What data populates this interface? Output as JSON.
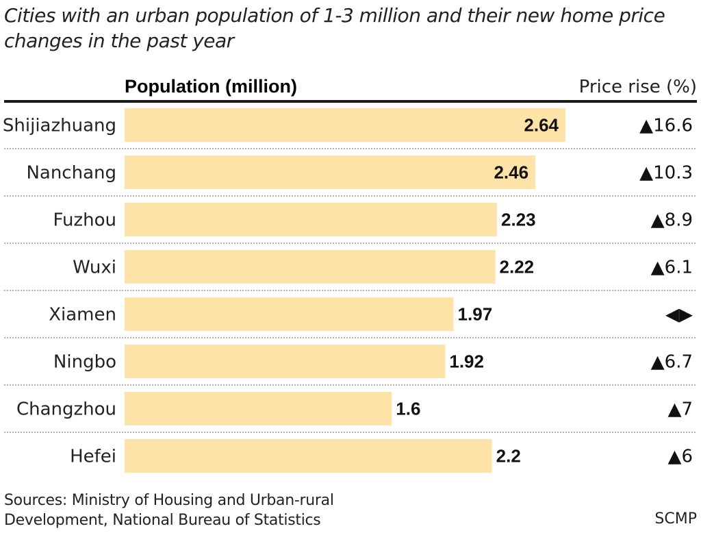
{
  "chart_data": {
    "type": "bar",
    "orientation": "horizontal",
    "title": "Cities with an urban population of 1-3 million and their new home price changes in the past year",
    "column_headers": {
      "population": "Population (million)",
      "price": "Price rise (%)"
    },
    "categories": [
      "Shijiazhuang",
      "Nanchang",
      "Fuzhou",
      "Wuxi",
      "Xiamen",
      "Ningbo",
      "Changzhou",
      "Hefei"
    ],
    "values": [
      2.64,
      2.46,
      2.23,
      2.22,
      1.97,
      1.92,
      1.6,
      2.2
    ],
    "value_labels": [
      "2.64",
      "2.46",
      "2.23",
      "2.22",
      "1.97",
      "1.92",
      "1.6",
      "2.2"
    ],
    "price_rise": [
      "▲16.6",
      "▲10.3",
      "▲8.9",
      "▲6.1",
      "◀▶",
      "▲6.7",
      "▲7",
      "▲6"
    ],
    "xlim": [
      0,
      2.64
    ],
    "grid": false,
    "bar_color": "#fde3a7"
  },
  "footer": {
    "sources_line1": "Sources: Ministry of Housing and Urban-rural",
    "sources_line2": "Development, National Bureau of Statistics",
    "credit": "SCMP"
  }
}
